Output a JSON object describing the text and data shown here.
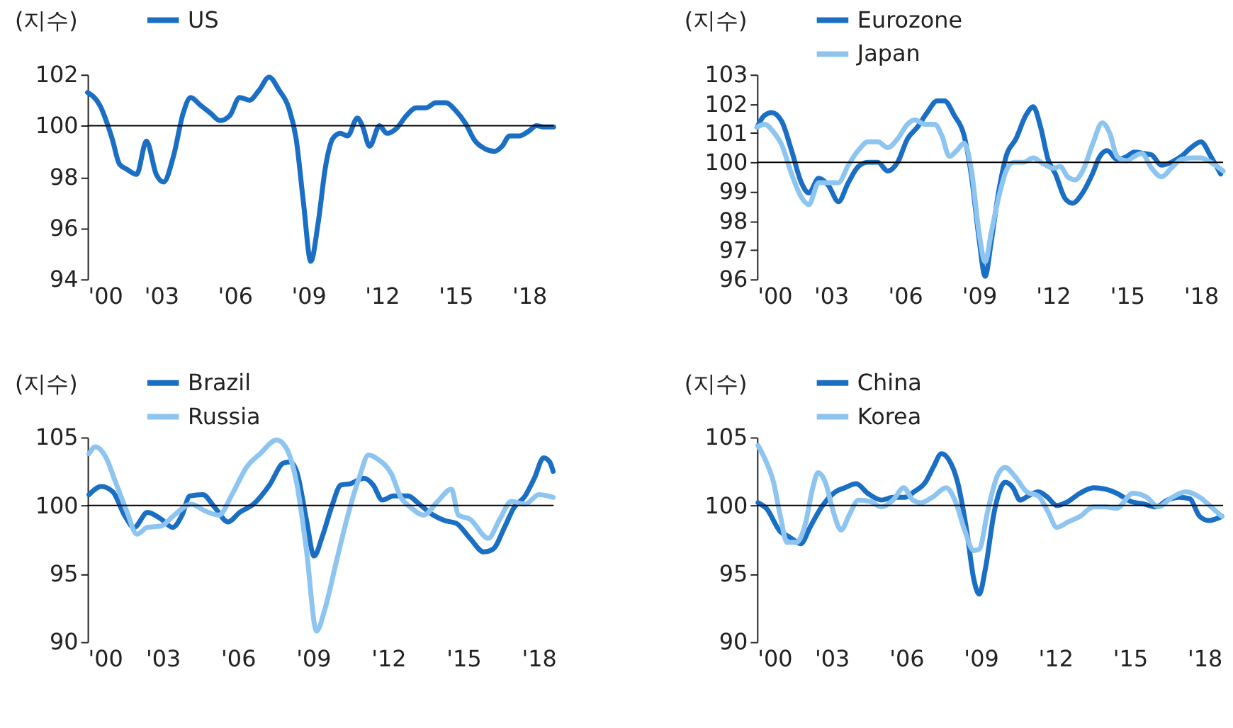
{
  "chart_data": [
    {
      "type": "line",
      "ylabel": "(지수)",
      "legend": "top left",
      "xlim": [
        2000,
        2019
      ],
      "ylim": [
        94,
        102
      ],
      "yticks": [
        94,
        96,
        98,
        100,
        102
      ],
      "xticks": [
        {
          "value": 2000,
          "label": "'00"
        },
        {
          "value": 2003,
          "label": "'03"
        },
        {
          "value": 2006,
          "label": "'06"
        },
        {
          "value": 2009,
          "label": "'09"
        },
        {
          "value": 2012,
          "label": "'12"
        },
        {
          "value": 2015,
          "label": "'15"
        },
        {
          "value": 2018,
          "label": "'18"
        }
      ],
      "ref_lines": [
        {
          "axis": "y",
          "value": 100,
          "color": "#000000"
        }
      ],
      "series": [
        {
          "name": "US",
          "color": "#1a6fc4",
          "x": [
            2000.0,
            2000.5,
            2001.0,
            2001.3,
            2001.6,
            2002.0,
            2002.4,
            2002.8,
            2003.1,
            2003.5,
            2003.9,
            2004.2,
            2004.6,
            2005.0,
            2005.4,
            2005.8,
            2006.2,
            2006.6,
            2007.0,
            2007.4,
            2007.8,
            2008.2,
            2008.5,
            2008.8,
            2009.1,
            2009.4,
            2009.7,
            2010.0,
            2010.3,
            2010.6,
            2011.0,
            2011.2,
            2011.5,
            2011.9,
            2012.2,
            2012.6,
            2013.0,
            2013.4,
            2013.8,
            2014.2,
            2014.6,
            2015.0,
            2015.4,
            2015.8,
            2016.2,
            2016.6,
            2016.9,
            2017.2,
            2017.6,
            2018.0,
            2018.3,
            2018.6,
            2019.0
          ],
          "values": [
            101.3,
            100.8,
            99.5,
            98.5,
            98.3,
            98.1,
            99.4,
            98.1,
            97.8,
            98.8,
            100.5,
            101.1,
            100.8,
            100.5,
            100.2,
            100.4,
            101.1,
            101.0,
            101.4,
            101.9,
            101.4,
            100.7,
            99.5,
            97.0,
            94.7,
            96.2,
            98.4,
            99.5,
            99.7,
            99.6,
            100.3,
            100.0,
            99.2,
            100.0,
            99.7,
            99.9,
            100.4,
            100.7,
            100.7,
            100.9,
            100.9,
            100.6,
            100.1,
            99.4,
            99.1,
            99.0,
            99.2,
            99.6,
            99.6,
            99.8,
            100.0,
            99.95,
            99.95
          ]
        }
      ]
    },
    {
      "type": "line",
      "ylabel": "(지수)",
      "legend": "top left",
      "xlim": [
        2000,
        2018.9
      ],
      "ylim": [
        96,
        103
      ],
      "yticks": [
        96,
        97,
        98,
        99,
        100,
        101,
        102,
        103
      ],
      "xticks": [
        {
          "value": 2000,
          "label": "'00"
        },
        {
          "value": 2003,
          "label": "'03"
        },
        {
          "value": 2006,
          "label": "'06"
        },
        {
          "value": 2009,
          "label": "'09"
        },
        {
          "value": 2012,
          "label": "'12"
        },
        {
          "value": 2015,
          "label": "'15"
        },
        {
          "value": 2018,
          "label": "'18"
        }
      ],
      "ref_lines": [
        {
          "axis": "y",
          "value": 100,
          "color": "#000000"
        }
      ],
      "series": [
        {
          "name": "Eurozone",
          "color": "#1a6fc4",
          "x": [
            2000.0,
            2000.3,
            2000.6,
            2001.0,
            2001.4,
            2001.8,
            2002.1,
            2002.5,
            2002.9,
            2003.3,
            2003.7,
            2004.1,
            2004.5,
            2004.9,
            2005.3,
            2005.7,
            2006.1,
            2006.5,
            2006.9,
            2007.3,
            2007.6,
            2008.0,
            2008.4,
            2008.7,
            2009.0,
            2009.25,
            2009.5,
            2009.8,
            2010.1,
            2010.5,
            2010.9,
            2011.2,
            2011.5,
            2011.8,
            2012.1,
            2012.5,
            2012.8,
            2013.2,
            2013.6,
            2013.9,
            2014.2,
            2014.6,
            2015.0,
            2015.3,
            2015.7,
            2016.0,
            2016.4,
            2016.8,
            2017.2,
            2017.6,
            2018.0,
            2018.4,
            2018.8
          ],
          "values": [
            101.2,
            101.6,
            101.7,
            101.4,
            100.4,
            99.3,
            98.95,
            99.45,
            99.2,
            98.65,
            99.3,
            99.85,
            100.0,
            100.0,
            99.7,
            100.0,
            100.8,
            101.2,
            101.7,
            102.1,
            102.1,
            101.6,
            100.9,
            99.5,
            97.4,
            96.1,
            97.3,
            99.0,
            100.2,
            100.8,
            101.6,
            101.9,
            101.2,
            100.1,
            99.6,
            98.75,
            98.6,
            98.95,
            99.6,
            100.2,
            100.4,
            100.1,
            100.2,
            100.35,
            100.3,
            100.25,
            99.9,
            100.0,
            100.2,
            100.5,
            100.7,
            100.2,
            99.6
          ]
        },
        {
          "name": "Japan",
          "color": "#8ec5f0",
          "x": [
            2000.0,
            2000.3,
            2000.7,
            2001.0,
            2001.4,
            2001.8,
            2002.1,
            2002.5,
            2002.9,
            2003.3,
            2003.7,
            2004.1,
            2004.5,
            2004.9,
            2005.3,
            2005.7,
            2006.1,
            2006.4,
            2006.8,
            2007.2,
            2007.5,
            2007.8,
            2008.1,
            2008.4,
            2008.7,
            2009.0,
            2009.25,
            2009.5,
            2009.8,
            2010.1,
            2010.4,
            2010.8,
            2011.2,
            2011.6,
            2012.0,
            2012.3,
            2012.6,
            2012.9,
            2013.2,
            2013.6,
            2014.0,
            2014.3,
            2014.6,
            2015.0,
            2015.3,
            2015.6,
            2016.0,
            2016.4,
            2016.8,
            2017.2,
            2017.6,
            2018.0,
            2018.4,
            2018.9
          ],
          "values": [
            101.2,
            101.3,
            101.0,
            100.6,
            99.6,
            98.8,
            98.55,
            99.3,
            99.3,
            99.3,
            99.9,
            100.4,
            100.7,
            100.7,
            100.5,
            100.8,
            101.3,
            101.45,
            101.3,
            101.3,
            100.9,
            100.2,
            100.4,
            100.65,
            99.7,
            97.6,
            96.6,
            97.6,
            98.8,
            99.7,
            100.0,
            100.0,
            100.15,
            99.95,
            99.8,
            99.85,
            99.5,
            99.4,
            99.7,
            100.6,
            101.35,
            101.0,
            100.2,
            100.05,
            100.2,
            100.3,
            99.8,
            99.5,
            99.8,
            100.1,
            100.15,
            100.15,
            100.0,
            99.7
          ]
        }
      ]
    },
    {
      "type": "line",
      "ylabel": "(지수)",
      "legend": "top left",
      "xlim": [
        2000,
        2018.6
      ],
      "ylim": [
        90,
        105
      ],
      "yticks": [
        90,
        95,
        100,
        105
      ],
      "xticks": [
        {
          "value": 2000,
          "label": "'00"
        },
        {
          "value": 2003,
          "label": "'03"
        },
        {
          "value": 2006,
          "label": "'06"
        },
        {
          "value": 2009,
          "label": "'09"
        },
        {
          "value": 2012,
          "label": "'12"
        },
        {
          "value": 2015,
          "label": "'15"
        },
        {
          "value": 2018,
          "label": "'18"
        }
      ],
      "ref_lines": [
        {
          "axis": "y",
          "value": 100,
          "color": "#000000"
        }
      ],
      "series": [
        {
          "name": "Brazil",
          "color": "#1a6fc4",
          "x": [
            2000.06,
            2000.55,
            2001.01,
            2001.47,
            2001.86,
            2002.39,
            2002.94,
            2003.4,
            2003.77,
            2004.08,
            2004.6,
            2005.06,
            2005.61,
            2006.07,
            2006.62,
            2007.26,
            2007.81,
            2008.09,
            2008.36,
            2008.73,
            2009.04,
            2009.38,
            2009.74,
            2010.11,
            2010.48,
            2011.03,
            2011.4,
            2011.76,
            2012.22,
            2012.78,
            2013.24,
            2013.79,
            2014.25,
            2014.71,
            2015.26,
            2015.81,
            2016.18,
            2016.64,
            2017.0,
            2017.46,
            2017.83,
            2018.2,
            2018.44,
            2018.58
          ],
          "values": [
            100.8,
            101.4,
            101.0,
            99.3,
            98.4,
            99.5,
            99.0,
            98.4,
            99.3,
            100.7,
            100.8,
            99.9,
            98.8,
            99.5,
            100.1,
            101.5,
            103.1,
            103.2,
            102.4,
            99.0,
            96.3,
            97.8,
            99.9,
            101.5,
            101.6,
            102.0,
            101.5,
            100.4,
            100.7,
            100.7,
            100.1,
            99.3,
            98.9,
            98.7,
            97.6,
            96.6,
            96.8,
            98.4,
            99.8,
            100.7,
            102.0,
            103.5,
            103.2,
            102.5
          ]
        },
        {
          "name": "Russia",
          "color": "#8ec5f0",
          "x": [
            2000.06,
            2000.31,
            2000.74,
            2001.1,
            2001.56,
            2001.97,
            2002.39,
            2002.94,
            2003.4,
            2004.14,
            2004.69,
            2005.24,
            2005.79,
            2006.34,
            2006.89,
            2007.54,
            2007.9,
            2008.36,
            2008.73,
            2009.14,
            2009.47,
            2009.93,
            2010.39,
            2010.85,
            2011.21,
            2011.58,
            2012.13,
            2012.5,
            2012.87,
            2013.42,
            2013.97,
            2014.52,
            2014.8,
            2015.26,
            2015.99,
            2016.45,
            2016.91,
            2017.46,
            2018.01,
            2018.58
          ],
          "values": [
            103.8,
            104.3,
            103.5,
            101.8,
            99.6,
            97.9,
            98.4,
            98.5,
            99.2,
            100.1,
            99.6,
            99.3,
            100.9,
            102.8,
            103.8,
            104.8,
            104.3,
            101.5,
            96.8,
            90.8,
            92.4,
            95.9,
            99.3,
            102.1,
            103.7,
            103.4,
            102.3,
            100.6,
            99.9,
            99.3,
            100.3,
            101.2,
            99.3,
            99.0,
            97.6,
            99.0,
            100.3,
            100.1,
            100.8,
            100.6
          ]
        }
      ]
    },
    {
      "type": "line",
      "ylabel": "(지수)",
      "legend": "top left",
      "xlim": [
        2000,
        2018.75
      ],
      "ylim": [
        90,
        105
      ],
      "yticks": [
        90,
        95,
        100,
        105
      ],
      "xticks": [
        {
          "value": 2000,
          "label": "'00"
        },
        {
          "value": 2003,
          "label": "'03"
        },
        {
          "value": 2006,
          "label": "'06"
        },
        {
          "value": 2009,
          "label": "'09"
        },
        {
          "value": 2012,
          "label": "'12"
        },
        {
          "value": 2015,
          "label": "'15"
        },
        {
          "value": 2018,
          "label": "'18"
        }
      ],
      "ref_lines": [
        {
          "axis": "y",
          "value": 100,
          "color": "#000000"
        }
      ],
      "series": [
        {
          "name": "China",
          "color": "#1a6fc4",
          "x": [
            2000.04,
            2000.37,
            2000.93,
            2001.3,
            2001.76,
            2002.13,
            2002.6,
            2003.15,
            2003.53,
            2003.99,
            2004.45,
            2005.01,
            2005.47,
            2005.94,
            2006.31,
            2006.77,
            2007.09,
            2007.42,
            2007.7,
            2008.07,
            2008.44,
            2008.72,
            2008.94,
            2009.18,
            2009.55,
            2009.98,
            2010.3,
            2010.58,
            2010.91,
            2011.32,
            2011.69,
            2012.06,
            2012.52,
            2012.99,
            2013.54,
            2014.01,
            2014.47,
            2015.03,
            2015.58,
            2016.05,
            2016.51,
            2016.98,
            2017.4,
            2017.81,
            2018.18,
            2018.7
          ],
          "values": [
            100.2,
            99.8,
            98.1,
            97.7,
            97.2,
            98.4,
            99.9,
            101.0,
            101.3,
            101.6,
            100.9,
            100.4,
            100.6,
            100.6,
            101.0,
            101.7,
            102.8,
            103.8,
            103.4,
            101.7,
            98.1,
            94.6,
            93.5,
            95.3,
            99.6,
            101.7,
            101.3,
            100.4,
            100.7,
            101.0,
            100.6,
            100.0,
            100.3,
            100.9,
            101.3,
            101.2,
            100.9,
            100.3,
            100.1,
            99.9,
            100.4,
            100.6,
            100.5,
            99.2,
            98.9,
            99.2
          ]
        },
        {
          "name": "Korea",
          "color": "#8ec5f0",
          "x": [
            2000.04,
            2000.37,
            2000.65,
            2000.93,
            2001.21,
            2001.58,
            2001.95,
            2002.23,
            2002.45,
            2002.75,
            2003.06,
            2003.38,
            2003.71,
            2004.08,
            2004.55,
            2005.01,
            2005.47,
            2005.9,
            2006.27,
            2006.59,
            2007.05,
            2007.61,
            2007.98,
            2008.35,
            2008.72,
            2008.94,
            2009.28,
            2009.65,
            2009.98,
            2010.39,
            2010.85,
            2011.32,
            2011.69,
            2012.06,
            2012.52,
            2012.99,
            2013.54,
            2014.01,
            2014.47,
            2015.12,
            2015.68,
            2016.14,
            2016.7,
            2017.25,
            2017.81,
            2018.27,
            2018.7
          ],
          "values": [
            104.4,
            103.2,
            101.8,
            99.3,
            97.3,
            97.3,
            98.7,
            101.2,
            102.4,
            101.7,
            99.6,
            98.2,
            99.3,
            100.4,
            100.3,
            99.9,
            100.4,
            101.3,
            100.4,
            100.2,
            100.6,
            101.3,
            100.3,
            98.2,
            96.7,
            96.8,
            99.6,
            102.1,
            102.8,
            102.1,
            101.0,
            100.7,
            99.6,
            98.4,
            98.8,
            99.2,
            99.9,
            99.9,
            99.8,
            100.9,
            100.6,
            99.9,
            100.6,
            101.0,
            100.6,
            99.9,
            99.2
          ]
        }
      ]
    }
  ]
}
